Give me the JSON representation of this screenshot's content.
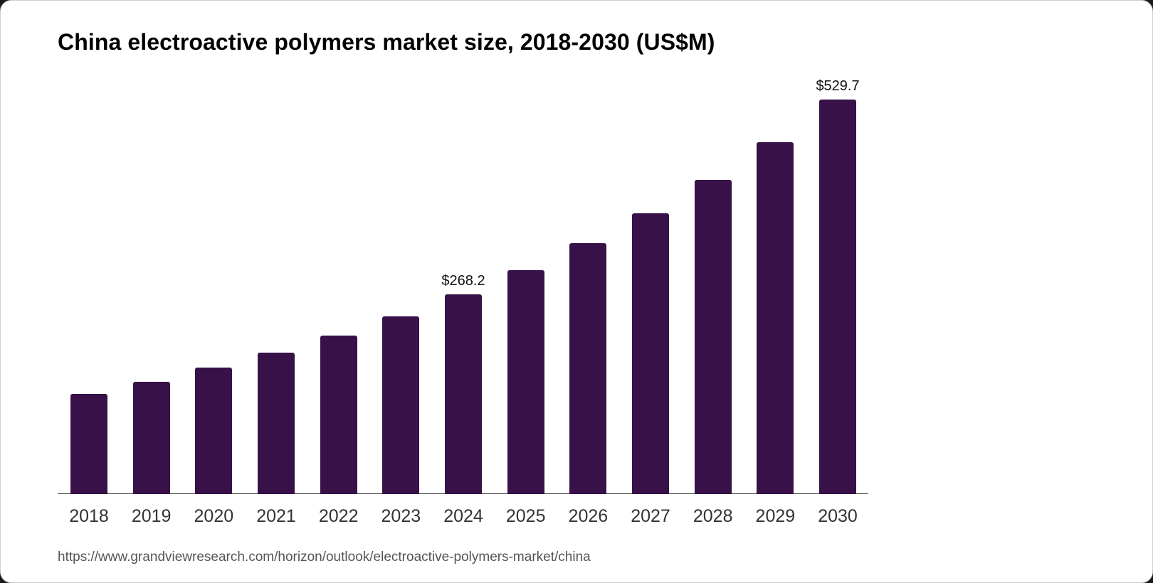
{
  "title": "China electroactive polymers market size, 2018-2030 (US$M)",
  "source_url": "https://www.grandviewresearch.com/horizon/outlook/electroactive-polymers-market/china",
  "colors": {
    "bar": "#371148",
    "axis": "#333333",
    "background": "#ffffff"
  },
  "chart_data": {
    "type": "bar",
    "title": "China electroactive polymers market size, 2018-2030 (US$M)",
    "xlabel": "",
    "ylabel": "",
    "categories": [
      "2018",
      "2019",
      "2020",
      "2021",
      "2022",
      "2023",
      "2024",
      "2025",
      "2026",
      "2027",
      "2028",
      "2029",
      "2030"
    ],
    "values": [
      134.6,
      150.8,
      169.9,
      189.9,
      212.8,
      238.6,
      268.2,
      300.6,
      336.9,
      377.0,
      421.8,
      472.4,
      529.7
    ],
    "data_labels": [
      {
        "category": "2024",
        "text": "$268.2"
      },
      {
        "category": "2030",
        "text": "$529.7"
      }
    ],
    "ylim": [
      0,
      529.7
    ],
    "grid": false,
    "legend": null,
    "y_axis_visible": false
  },
  "labels": {
    "2024": "$268.2",
    "2030": "$529.7"
  }
}
